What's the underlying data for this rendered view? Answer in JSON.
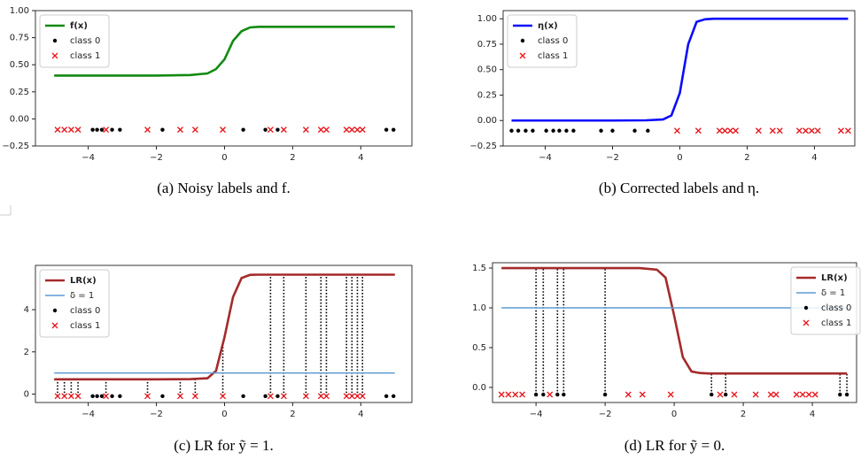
{
  "chart_data": [
    {
      "type": "line",
      "caption": "(a) Noisy labels and f.",
      "legend": "upper left",
      "xlim": [
        -5.55,
        5.5
      ],
      "ylim": [
        -0.25,
        1.0
      ],
      "xticks": [
        {
          "value": -4,
          "label": "−4"
        },
        {
          "value": -2,
          "label": "−2"
        },
        0,
        2,
        4
      ],
      "yticks": [
        {
          "value": -0.25,
          "label": "−0.25"
        },
        {
          "value": 0,
          "label": "0.00"
        },
        {
          "value": 0.25,
          "label": "0.25"
        },
        {
          "value": 0.5,
          "label": "0.50"
        },
        {
          "value": 0.75,
          "label": "0.75"
        },
        {
          "value": 1,
          "label": "1.00"
        }
      ],
      "series": [
        {
          "name": "f(x)",
          "kind": "line",
          "color": "#138a13",
          "x": [
            -5,
            -4,
            -3,
            -2,
            -1,
            -0.5,
            -0.25,
            0,
            0.25,
            0.5,
            0.75,
            1,
            2,
            3,
            4,
            5
          ],
          "values": [
            0.4,
            0.4,
            0.4,
            0.4,
            0.405,
            0.42,
            0.46,
            0.55,
            0.72,
            0.81,
            0.845,
            0.85,
            0.85,
            0.85,
            0.85,
            0.85
          ]
        },
        {
          "name": "class 0",
          "kind": "scatter",
          "marker": "dot",
          "color": "#000000",
          "x": [
            -3.87,
            -3.74,
            -3.6,
            -3.3,
            -3.07,
            -1.82,
            0.55,
            1.2,
            1.56,
            4.75,
            4.96
          ],
          "values": [
            -0.1,
            -0.1,
            -0.1,
            -0.1,
            -0.1,
            -0.1,
            -0.1,
            -0.1,
            -0.1,
            -0.1,
            -0.1
          ]
        },
        {
          "name": "class 1",
          "kind": "scatter",
          "marker": "x",
          "color": "#e8141a",
          "x": [
            -4.9,
            -4.7,
            -4.5,
            -4.3,
            -3.48,
            -2.26,
            -1.3,
            -0.86,
            -0.05,
            1.35,
            1.74,
            2.39,
            2.83,
            2.99,
            3.58,
            3.74,
            3.9,
            4.05
          ],
          "values": [
            -0.1,
            -0.1,
            -0.1,
            -0.1,
            -0.1,
            -0.1,
            -0.1,
            -0.1,
            -0.1,
            -0.1,
            -0.1,
            -0.1,
            -0.1,
            -0.1,
            -0.1,
            -0.1,
            -0.1,
            -0.1
          ]
        }
      ]
    },
    {
      "type": "line",
      "caption": "(b) Corrected labels and η.",
      "legend": "upper left",
      "xlim": [
        -5.25,
        5.2
      ],
      "ylim": [
        -0.25,
        1.08
      ],
      "xticks": [
        {
          "value": -4,
          "label": "−4"
        },
        {
          "value": -2,
          "label": "−2"
        },
        0,
        2,
        4
      ],
      "yticks": [
        {
          "value": -0.25,
          "label": "−0.25"
        },
        {
          "value": 0,
          "label": "0.00"
        },
        {
          "value": 0.25,
          "label": "0.25"
        },
        {
          "value": 0.5,
          "label": "0.50"
        },
        {
          "value": 0.75,
          "label": "0.75"
        },
        {
          "value": 1,
          "label": "1.00"
        }
      ],
      "series": [
        {
          "name": "η(x)",
          "kind": "line",
          "color": "#0a0aff",
          "x": [
            -5,
            -4,
            -3,
            -2,
            -1,
            -0.5,
            -0.25,
            0,
            0.25,
            0.5,
            0.75,
            1,
            2,
            3,
            4,
            5
          ],
          "values": [
            0,
            0,
            0,
            0,
            0.002,
            0.01,
            0.05,
            0.27,
            0.75,
            0.97,
            0.995,
            1,
            1,
            1,
            1,
            1
          ]
        },
        {
          "name": "class 0",
          "kind": "scatter",
          "marker": "dot",
          "color": "#000000",
          "x": [
            -5,
            -4.8,
            -4.58,
            -4.37,
            -3.97,
            -3.76,
            -3.58,
            -3.37,
            -3.16,
            -2.34,
            -2,
            -1.34,
            -0.95
          ],
          "values": [
            -0.1,
            -0.1,
            -0.1,
            -0.1,
            -0.1,
            -0.1,
            -0.1,
            -0.1,
            -0.1,
            -0.1,
            -0.1,
            -0.1,
            -0.1
          ]
        },
        {
          "name": "class 1",
          "kind": "scatter",
          "marker": "x",
          "color": "#e8141a",
          "x": [
            -0.08,
            0.55,
            1.18,
            1.34,
            1.5,
            1.66,
            2.34,
            2.76,
            2.97,
            3.55,
            3.74,
            3.92,
            4.1,
            4.79,
            5.0
          ],
          "values": [
            -0.1,
            -0.1,
            -0.1,
            -0.1,
            -0.1,
            -0.1,
            -0.1,
            -0.1,
            -0.1,
            -0.1,
            -0.1,
            -0.1,
            -0.1,
            -0.1,
            -0.1
          ]
        }
      ]
    },
    {
      "type": "line",
      "caption": "(c) LR for ỹ = 1.",
      "legend": "upper left",
      "xlim": [
        -5.55,
        5.5
      ],
      "ylim": [
        -0.4,
        6.1
      ],
      "xticks": [
        {
          "value": -4,
          "label": "−4"
        },
        {
          "value": -2,
          "label": "−2"
        },
        0,
        2,
        4
      ],
      "yticks": [
        0,
        2,
        4
      ],
      "series": [
        {
          "name": "LR(x)",
          "kind": "line",
          "color": "#a52a2a",
          "x": [
            -5,
            -4,
            -3,
            -2,
            -1,
            -0.5,
            -0.25,
            0,
            0.25,
            0.5,
            0.75,
            1,
            2,
            3,
            4,
            5
          ],
          "values": [
            0.7,
            0.7,
            0.7,
            0.7,
            0.71,
            0.75,
            1.1,
            2.7,
            4.6,
            5.5,
            5.65,
            5.66,
            5.66,
            5.66,
            5.66,
            5.66
          ]
        },
        {
          "name": "δ = 1",
          "kind": "line",
          "color": "#5b9bd5",
          "x": [
            -5,
            5
          ],
          "values": [
            1,
            1
          ]
        },
        {
          "name": "class 0",
          "kind": "scatter",
          "marker": "dot",
          "color": "#000000",
          "x": [
            -3.87,
            -3.74,
            -3.6,
            -3.3,
            -3.07,
            -1.82,
            0.55,
            1.2,
            1.56,
            4.75,
            4.96
          ],
          "values": [
            -0.1,
            -0.1,
            -0.1,
            -0.1,
            -0.1,
            -0.1,
            -0.1,
            -0.1,
            -0.1,
            -0.1,
            -0.1
          ]
        },
        {
          "name": "class 1",
          "kind": "scatter",
          "marker": "x",
          "stems": true,
          "color": "#e8141a",
          "x": [
            -4.9,
            -4.7,
            -4.5,
            -4.3,
            -3.48,
            -2.26,
            -1.3,
            -0.86,
            -0.05,
            1.35,
            1.74,
            2.39,
            2.83,
            2.99,
            3.58,
            3.74,
            3.9,
            4.05
          ],
          "values": [
            -0.1,
            -0.1,
            -0.1,
            -0.1,
            -0.1,
            -0.1,
            -0.1,
            -0.1,
            -0.1,
            -0.1,
            -0.1,
            -0.1,
            -0.1,
            -0.1,
            -0.1,
            -0.1,
            -0.1,
            -0.1
          ]
        }
      ]
    },
    {
      "type": "line",
      "caption": "(d) LR for ỹ = 0.",
      "legend": "upper right",
      "xlim": [
        -5.26,
        5.28
      ],
      "ylim": [
        -0.19,
        1.567
      ],
      "xticks": [
        {
          "value": -4,
          "label": "−4"
        },
        {
          "value": -2,
          "label": "−2"
        },
        0,
        2,
        4
      ],
      "yticks": [
        {
          "value": 0,
          "label": "0.0"
        },
        {
          "value": 0.5,
          "label": "0.5"
        },
        {
          "value": 1,
          "label": "1.0"
        },
        {
          "value": 1.5,
          "label": "1.5"
        }
      ],
      "series": [
        {
          "name": "LR(x)",
          "kind": "line",
          "color": "#a52a2a",
          "x": [
            -5,
            -4,
            -3,
            -2,
            -1,
            -0.5,
            -0.25,
            0,
            0.25,
            0.5,
            0.75,
            1,
            2,
            3,
            4,
            5
          ],
          "values": [
            1.5,
            1.5,
            1.5,
            1.5,
            1.5,
            1.48,
            1.38,
            0.9,
            0.38,
            0.2,
            0.18,
            0.175,
            0.175,
            0.175,
            0.175,
            0.175
          ]
        },
        {
          "name": "δ = 1",
          "kind": "line",
          "color": "#5b9bd5",
          "x": [
            -5,
            5
          ],
          "values": [
            1,
            1
          ]
        },
        {
          "name": "class 0",
          "kind": "scatter",
          "marker": "dot",
          "stems": true,
          "color": "#000000",
          "x": [
            -4,
            -3.79,
            -3.38,
            -3.2,
            -2,
            1.08,
            1.49,
            4.8,
            5.0
          ],
          "values": [
            -0.09,
            -0.09,
            -0.09,
            -0.09,
            -0.09,
            -0.09,
            -0.09,
            -0.09,
            -0.09
          ]
        },
        {
          "name": "class 1",
          "kind": "scatter",
          "marker": "x",
          "color": "#e8141a",
          "x": [
            -5,
            -4.8,
            -4.6,
            -4.4,
            -3.6,
            -1.33,
            -0.92,
            -0.1,
            1.33,
            1.74,
            2.36,
            2.8,
            2.95,
            3.54,
            3.72,
            3.9,
            4.08
          ],
          "values": [
            -0.09,
            -0.09,
            -0.09,
            -0.09,
            -0.09,
            -0.09,
            -0.09,
            -0.09,
            -0.09,
            -0.09,
            -0.09,
            -0.09,
            -0.09,
            -0.09,
            -0.09,
            -0.09,
            -0.09
          ]
        }
      ]
    }
  ]
}
